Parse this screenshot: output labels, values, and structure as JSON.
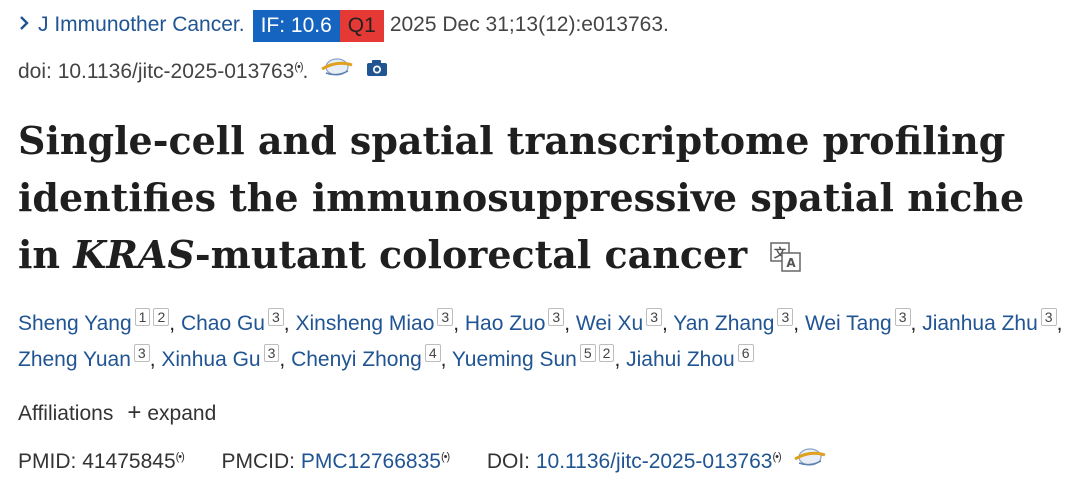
{
  "citation": {
    "chevron": ">",
    "journal": "J Immunother Cancer.",
    "if_badge": "IF: 10.6",
    "q_badge": "Q1",
    "date_vol": "2025 Dec 31;13(12):e013763."
  },
  "doi_line": {
    "text": "doi: 10.1136/jitc-2025-013763",
    "radio": "(•)",
    "period": "."
  },
  "title": {
    "part1": "Single-cell and spatial transcriptome profiling identifies the immunosuppressive spatial niche in ",
    "italic": "KRAS",
    "part2": "-mutant colorectal cancer"
  },
  "authors": [
    {
      "name": "Sheng Yang",
      "affs": [
        "1",
        "2"
      ]
    },
    {
      "name": "Chao Gu",
      "affs": [
        "3"
      ]
    },
    {
      "name": "Xinsheng Miao",
      "affs": [
        "3"
      ]
    },
    {
      "name": "Hao Zuo",
      "affs": [
        "3"
      ]
    },
    {
      "name": "Wei Xu",
      "affs": [
        "3"
      ]
    },
    {
      "name": "Yan Zhang",
      "affs": [
        "3"
      ]
    },
    {
      "name": "Wei Tang",
      "affs": [
        "3"
      ]
    },
    {
      "name": "Jianhua Zhu",
      "affs": [
        "3"
      ]
    },
    {
      "name": "Zheng Yuan",
      "affs": [
        "3"
      ]
    },
    {
      "name": "Xinhua Gu",
      "affs": [
        "3"
      ]
    },
    {
      "name": "Chenyi Zhong",
      "affs": [
        "4"
      ]
    },
    {
      "name": "Yueming Sun",
      "affs": [
        "5",
        "2"
      ]
    },
    {
      "name": "Jiahui Zhou",
      "affs": [
        "6"
      ]
    }
  ],
  "affiliations": {
    "label": "Affiliations",
    "plus": "+",
    "expand": "expand"
  },
  "ids": {
    "pmid_label": "PMID:",
    "pmid": "41475845",
    "pmcid_label": "PMCID:",
    "pmcid": "PMC12766835",
    "doi_label": "DOI:",
    "doi": "10.1136/jitc-2025-013763",
    "radio": "(•)"
  },
  "icons": [
    "chevron-right-icon",
    "radio-icon",
    "citation-globe-icon",
    "camera-icon",
    "translate-icon"
  ],
  "colors": {
    "link": "#205493",
    "if_badge": "#1565c0",
    "q1_badge": "#e53935"
  }
}
